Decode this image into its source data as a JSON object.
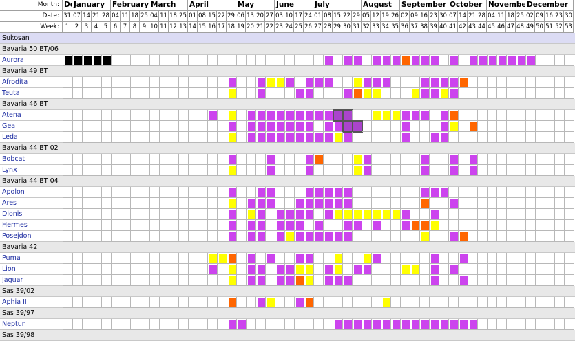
{
  "header": {
    "month_label": "Month:",
    "date_label": "Date:",
    "week_label": "Week:"
  },
  "months": [
    {
      "name": "De",
      "start": 0,
      "span": 1
    },
    {
      "name": "January",
      "start": 1,
      "span": 4
    },
    {
      "name": "February",
      "start": 5,
      "span": 4
    },
    {
      "name": "March",
      "start": 9,
      "span": 4
    },
    {
      "name": "April",
      "start": 13,
      "span": 5
    },
    {
      "name": "May",
      "start": 18,
      "span": 4
    },
    {
      "name": "June",
      "start": 22,
      "span": 4
    },
    {
      "name": "July",
      "start": 26,
      "span": 5
    },
    {
      "name": "August",
      "start": 31,
      "span": 4
    },
    {
      "name": "September",
      "start": 35,
      "span": 5
    },
    {
      "name": "October",
      "start": 40,
      "span": 4
    },
    {
      "name": "Novembe",
      "start": 44,
      "span": 4
    },
    {
      "name": "December",
      "start": 48,
      "span": 5
    }
  ],
  "dates": [
    "31",
    "07",
    "14",
    "21",
    "28",
    "04",
    "11",
    "18",
    "25",
    "04",
    "11",
    "18",
    "25",
    "01",
    "08",
    "15",
    "22",
    "29",
    "06",
    "13",
    "20",
    "27",
    "03",
    "10",
    "17",
    "24",
    "01",
    "08",
    "15",
    "22",
    "29",
    "05",
    "12",
    "19",
    "26",
    "02",
    "09",
    "16",
    "23",
    "30",
    "07",
    "14",
    "21",
    "28",
    "04",
    "11",
    "18",
    "25",
    "02",
    "09",
    "16",
    "23",
    "30"
  ],
  "weeks": [
    "1",
    "2",
    "3",
    "4",
    "5",
    "6",
    "7",
    "8",
    "9",
    "10",
    "11",
    "12",
    "13",
    "14",
    "15",
    "16",
    "17",
    "18",
    "19",
    "20",
    "21",
    "22",
    "23",
    "24",
    "25",
    "26",
    "27",
    "28",
    "29",
    "30",
    "31",
    "32",
    "33",
    "34",
    "35",
    "36",
    "37",
    "38",
    "39",
    "40",
    "41",
    "42",
    "43",
    "44",
    "45",
    "46",
    "47",
    "48",
    "49",
    "50",
    "51",
    "52",
    "53"
  ],
  "colors": {
    "booked": "#cc44ee",
    "option": "#ffff00",
    "special": "#ff6600",
    "blocked": "#000000",
    "company_row": "#dcdcf4",
    "group_row": "#e8e8e8",
    "boat_text": "#1a2aa0"
  },
  "rows": [
    {
      "type": "company",
      "label": "Sukosan"
    },
    {
      "type": "group",
      "label": "Bavaria 50 BT/06"
    },
    {
      "type": "boat",
      "label": "Aurora",
      "cells": "KKKKK......................P.PP.PPPOPPP.P.PPPPPPP.............."
    },
    {
      "type": "group",
      "label": "Bavaria 49 BT"
    },
    {
      "type": "boat",
      "label": "Afrodita",
      "cells": ".................P..PYYP.PPP..YPPP...PPPPO............."
    },
    {
      "type": "boat",
      "label": "Teuta",
      "cells": ".................Y..P...PP...POYY...YPPYP.............."
    },
    {
      "type": "group",
      "label": "Bavaria 46 BT"
    },
    {
      "type": "boat",
      "label": "Atena",
      "cells": "...............P.Y.PPPPPPPPPSS..YYYPPP.PO............."
    },
    {
      "type": "boat",
      "label": "Gea",
      "cells": ".................P.PPPPPPP.PPSS....P...PY.O............"
    },
    {
      "type": "boat",
      "label": "Leda",
      "cells": ".................Y.PPPPPPPPPYP.....P..PP..............."
    },
    {
      "type": "group",
      "label": "Bavaria 44 BT 02"
    },
    {
      "type": "boat",
      "label": "Bobcat",
      "cells": ".................P...P...PO...YP.....P..P.P............."
    },
    {
      "type": "boat",
      "label": "Lynx",
      "cells": ".................Y...P...P....YP.....P..P.P............."
    },
    {
      "type": "group",
      "label": "Bavaria 44 BT 04"
    },
    {
      "type": "boat",
      "label": "Apolon",
      "cells": ".................P..PP...PPPPP.......PPP..............."
    },
    {
      "type": "boat",
      "label": "Ares",
      "cells": ".................Y.PPP..PPPPPP.......O..P..............."
    },
    {
      "type": "boat",
      "label": "Dionis",
      "cells": ".................P.YP.PPPP.PYYYYYYYP..P................"
    },
    {
      "type": "boat",
      "label": "Hermes",
      "cells": ".................P.PP.PPP.P..PP.P..POOY................."
    },
    {
      "type": "boat",
      "label": "Posejdon",
      "cells": ".................P.PP.PYPPPPPP.......Y..PO.............."
    },
    {
      "type": "group",
      "label": "Bavaria 42"
    },
    {
      "type": "boat",
      "label": "Puma",
      "cells": "...............YYO.P.P..PP..Y..YP.....P..P.............."
    },
    {
      "type": "boat",
      "label": "Lion",
      "cells": "...............P.Y.PP.PPYY.PY.PP...YY.P.P..............."
    },
    {
      "type": "boat",
      "label": "Jaguar",
      "cells": ".................Y.PP.PPOY.PPP........P..P..............."
    },
    {
      "type": "group",
      "label": "Sas 39/02"
    },
    {
      "type": "boat",
      "label": "Aphia II",
      "cells": ".................O..PY..PO.......Y..................."
    },
    {
      "type": "group",
      "label": "Sas 39/97"
    },
    {
      "type": "boat",
      "label": "Neptun",
      "cells": ".................PP.........PPPPPPPPPPPPPPP..............."
    },
    {
      "type": "group",
      "label": "Sas 39/98"
    }
  ]
}
